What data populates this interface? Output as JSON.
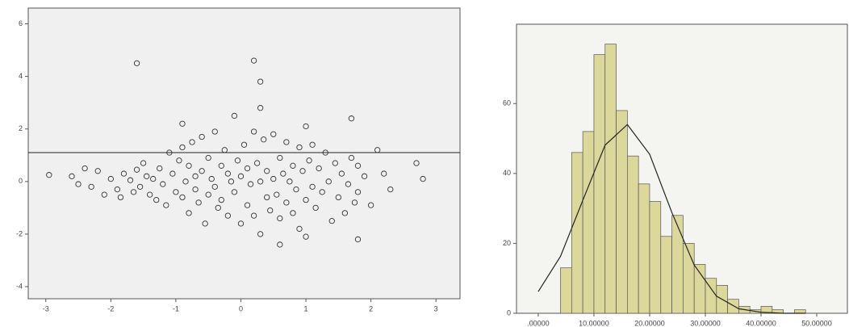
{
  "chart_data": [
    {
      "type": "scatter",
      "x": [
        -2.95,
        -2.6,
        -2.5,
        -2.4,
        -2.3,
        -2.2,
        -2.1,
        -2.0,
        -1.9,
        -1.85,
        -1.8,
        -1.7,
        -1.65,
        -1.6,
        -1.55,
        -1.5,
        -1.45,
        -1.4,
        -1.35,
        -1.3,
        -1.25,
        -1.2,
        -1.15,
        -1.1,
        -1.05,
        -1.0,
        -0.95,
        -0.9,
        -0.9,
        -0.85,
        -0.8,
        -0.8,
        -0.75,
        -0.7,
        -0.7,
        -0.65,
        -0.6,
        -0.6,
        -0.55,
        -0.5,
        -0.5,
        -0.45,
        -0.4,
        -0.4,
        -0.35,
        -0.3,
        -0.3,
        -0.25,
        -0.2,
        -0.2,
        -0.15,
        -0.1,
        -0.1,
        -0.05,
        0.0,
        0.0,
        0.05,
        0.1,
        0.1,
        0.15,
        0.2,
        0.2,
        0.25,
        0.3,
        0.3,
        0.35,
        0.4,
        0.4,
        0.45,
        0.5,
        0.5,
        0.55,
        0.6,
        0.6,
        0.65,
        0.7,
        0.7,
        0.75,
        0.8,
        0.8,
        0.85,
        0.9,
        0.9,
        0.95,
        1.0,
        1.0,
        1.05,
        1.1,
        1.1,
        1.15,
        1.2,
        1.25,
        1.3,
        1.35,
        1.4,
        1.45,
        1.5,
        1.55,
        1.6,
        1.65,
        1.7,
        1.75,
        1.8,
        1.8,
        1.9,
        2.0,
        2.1,
        2.2,
        2.3,
        2.7,
        2.8,
        -1.6,
        0.2,
        0.3,
        0.3,
        1.7,
        0.6,
        1.0,
        1.8,
        -0.9
      ],
      "values": [
        0.25,
        0.2,
        -0.1,
        0.5,
        -0.2,
        0.4,
        -0.5,
        0.1,
        -0.3,
        -0.6,
        0.3,
        0.05,
        -0.4,
        0.45,
        -0.2,
        0.7,
        0.2,
        -0.5,
        0.1,
        -0.7,
        0.5,
        -0.1,
        -0.9,
        1.1,
        0.3,
        -0.4,
        0.8,
        -0.6,
        1.3,
        0.0,
        -1.2,
        0.6,
        1.5,
        -0.3,
        0.2,
        -0.8,
        1.7,
        0.4,
        -1.6,
        0.9,
        -0.5,
        0.1,
        1.9,
        -0.2,
        -1.0,
        0.6,
        -0.7,
        1.2,
        0.3,
        -1.3,
        0.0,
        2.5,
        -0.4,
        0.8,
        -1.6,
        0.2,
        1.4,
        -0.9,
        0.5,
        -0.1,
        1.9,
        -1.3,
        0.7,
        -2.0,
        0.0,
        1.6,
        -0.6,
        0.4,
        -1.1,
        1.8,
        0.1,
        -0.5,
        0.9,
        -1.4,
        0.3,
        -0.8,
        1.5,
        0.0,
        -1.2,
        0.6,
        -0.3,
        1.3,
        -1.8,
        0.4,
        2.1,
        -0.7,
        0.8,
        -0.2,
        1.4,
        -1.0,
        0.5,
        -0.4,
        1.1,
        0.0,
        -1.5,
        0.7,
        -0.6,
        0.3,
        -1.2,
        -0.1,
        0.9,
        -0.8,
        -0.4,
        0.6,
        0.2,
        -0.9,
        1.2,
        0.3,
        -0.3,
        0.7,
        0.1,
        4.5,
        4.6,
        3.8,
        2.8,
        2.4,
        -2.4,
        -2.1,
        -2.2,
        2.2
      ],
      "reference_line": 1.1,
      "color": "#333333",
      "xlim": [
        -3.27,
        3.37
      ],
      "xticks": [
        -3,
        -2,
        -1,
        0,
        1,
        2,
        3
      ],
      "ylim": [
        -4.46,
        6.6
      ],
      "yticks": [
        -4,
        -2,
        0,
        2,
        4,
        6
      ]
    },
    {
      "type": "histogram",
      "bins": [
        4,
        6,
        8,
        10,
        12,
        14,
        16,
        18,
        20,
        22,
        24,
        26,
        28,
        30,
        32,
        34,
        36,
        38,
        40,
        42,
        44,
        46,
        48,
        50
      ],
      "values": [
        13,
        46,
        52,
        74,
        77,
        58,
        45,
        37,
        32,
        22,
        28,
        20,
        14,
        10,
        8,
        4,
        2,
        1,
        2,
        1,
        0,
        1,
        0
      ],
      "curve_x": [
        0,
        4,
        8,
        12,
        16,
        20,
        24,
        28,
        32,
        36,
        40,
        44,
        48
      ],
      "curve_y": [
        6.2,
        16.3,
        32.3,
        48.1,
        54,
        45.5,
        28.8,
        13.8,
        4.9,
        1.3,
        0.3,
        0,
        0
      ],
      "color": "#dcd89c",
      "xlim": [
        -3.9,
        55.5
      ],
      "xticks": [
        {
          "value": 0,
          "label": ".00000"
        },
        {
          "value": 10,
          "label": "10.00000"
        },
        {
          "value": 20,
          "label": "20.00000"
        },
        {
          "value": 30,
          "label": "30.00000"
        },
        {
          "value": 40,
          "label": "40.00000"
        },
        {
          "value": 50,
          "label": "50.00000"
        }
      ],
      "ylim": [
        0,
        82.7
      ],
      "yticks": [
        0,
        20,
        40,
        60
      ]
    }
  ]
}
